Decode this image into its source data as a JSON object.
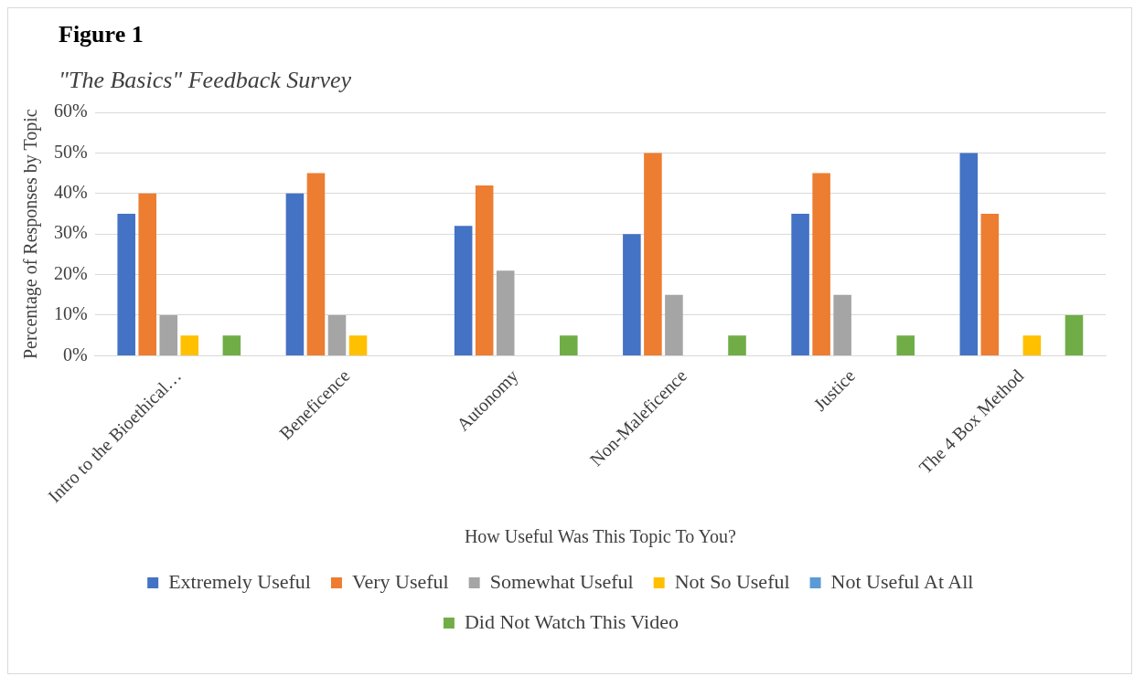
{
  "chart_data": {
    "type": "bar",
    "title": "Figure 1",
    "subtitle": "\"The Basics\" Feedback Survey",
    "xlabel": "How Useful Was This Topic To You?",
    "ylabel": "Percentage of Responses by Topic",
    "categories": [
      "Intro to the Bioethical…",
      "Beneficence",
      "Autonomy",
      "Non-Maleficence",
      "Justice",
      "The 4 Box Method"
    ],
    "series": [
      {
        "name": "Extremely Useful",
        "color": "#4472c4",
        "values": [
          35,
          40,
          32,
          30,
          35,
          50
        ]
      },
      {
        "name": "Very Useful",
        "color": "#ed7d31",
        "values": [
          40,
          45,
          42,
          50,
          45,
          35
        ]
      },
      {
        "name": "Somewhat Useful",
        "color": "#a5a5a5",
        "values": [
          10,
          10,
          21,
          15,
          15,
          0
        ]
      },
      {
        "name": "Not So Useful",
        "color": "#ffc000",
        "values": [
          5,
          5,
          0,
          0,
          0,
          5
        ]
      },
      {
        "name": "Not Useful At All",
        "color": "#5b9bd5",
        "values": [
          0,
          0,
          0,
          0,
          0,
          0
        ]
      },
      {
        "name": "Did Not Watch This Video",
        "color": "#70ad47",
        "values": [
          5,
          0,
          5,
          5,
          5,
          10
        ]
      }
    ],
    "ylim": [
      0,
      60
    ],
    "yticks": [
      {
        "value": 0,
        "label": "0%"
      },
      {
        "value": 10,
        "label": "10%"
      },
      {
        "value": 20,
        "label": "20%"
      },
      {
        "value": 30,
        "label": "30%"
      },
      {
        "value": 40,
        "label": "40%"
      },
      {
        "value": 50,
        "label": "50%"
      },
      {
        "value": 60,
        "label": "60%"
      }
    ],
    "grid": "y",
    "legend": "bottom"
  }
}
